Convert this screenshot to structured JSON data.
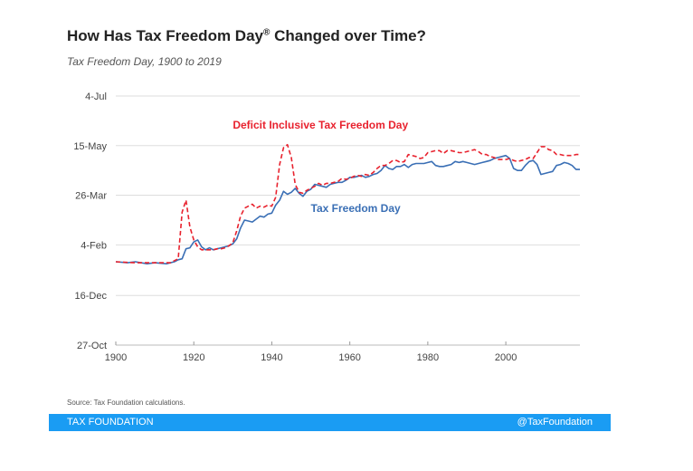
{
  "chart_data": {
    "type": "line",
    "title": "How Has Tax Freedom Day",
    "title_mark": "®",
    "title_suffix": " Changed over Time?",
    "subtitle": "Tax Freedom Day, 1900 to 2019",
    "xlabel": "",
    "ylabel": "",
    "x_ticks": [
      "1900",
      "1920",
      "1940",
      "1960",
      "1980",
      "2000"
    ],
    "y_ticks": [
      "27-Oct",
      "16-Dec",
      "4-Feb",
      "26-Mar",
      "15-May",
      "4-Jul"
    ],
    "y_tick_days": [
      -66,
      -16,
      35,
      85,
      135,
      185
    ],
    "xlim": [
      1900,
      2019
    ],
    "ylim": [
      -66,
      185
    ],
    "annotations": {
      "deficit": "Deficit Inclusive Tax Freedom Day",
      "tfd": "Tax Freedom Day"
    },
    "series": [
      {
        "name": "Tax Freedom Day",
        "color": "#3a6fb5",
        "dash": "solid",
        "points": [
          [
            1900,
            18
          ],
          [
            1903,
            17
          ],
          [
            1905,
            18
          ],
          [
            1908,
            16
          ],
          [
            1910,
            17
          ],
          [
            1913,
            16
          ],
          [
            1915,
            18
          ],
          [
            1916,
            20
          ],
          [
            1917,
            21
          ],
          [
            1918,
            31
          ],
          [
            1919,
            32
          ],
          [
            1920,
            38
          ],
          [
            1921,
            40
          ],
          [
            1922,
            33
          ],
          [
            1923,
            30
          ],
          [
            1924,
            32
          ],
          [
            1925,
            30
          ],
          [
            1926,
            31
          ],
          [
            1927,
            32
          ],
          [
            1928,
            33
          ],
          [
            1929,
            34
          ],
          [
            1930,
            36
          ],
          [
            1931,
            41
          ],
          [
            1932,
            52
          ],
          [
            1933,
            60
          ],
          [
            1934,
            59
          ],
          [
            1935,
            58
          ],
          [
            1936,
            61
          ],
          [
            1937,
            64
          ],
          [
            1938,
            63
          ],
          [
            1939,
            66
          ],
          [
            1940,
            67
          ],
          [
            1941,
            75
          ],
          [
            1942,
            80
          ],
          [
            1943,
            89
          ],
          [
            1944,
            86
          ],
          [
            1945,
            88
          ],
          [
            1946,
            92
          ],
          [
            1947,
            87
          ],
          [
            1948,
            84
          ],
          [
            1949,
            89
          ],
          [
            1950,
            91
          ],
          [
            1951,
            96
          ],
          [
            1952,
            95
          ],
          [
            1953,
            94
          ],
          [
            1954,
            93
          ],
          [
            1955,
            96
          ],
          [
            1956,
            97
          ],
          [
            1957,
            98
          ],
          [
            1958,
            98
          ],
          [
            1959,
            100
          ],
          [
            1960,
            103
          ],
          [
            1961,
            103
          ],
          [
            1962,
            104
          ],
          [
            1963,
            105
          ],
          [
            1964,
            103
          ],
          [
            1965,
            104
          ],
          [
            1966,
            106
          ],
          [
            1967,
            107
          ],
          [
            1968,
            110
          ],
          [
            1969,
            115
          ],
          [
            1970,
            112
          ],
          [
            1971,
            111
          ],
          [
            1972,
            114
          ],
          [
            1973,
            114
          ],
          [
            1974,
            116
          ],
          [
            1975,
            113
          ],
          [
            1976,
            116
          ],
          [
            1977,
            117
          ],
          [
            1978,
            117
          ],
          [
            1979,
            117
          ],
          [
            1980,
            118
          ],
          [
            1981,
            119
          ],
          [
            1982,
            115
          ],
          [
            1983,
            114
          ],
          [
            1984,
            114
          ],
          [
            1985,
            115
          ],
          [
            1986,
            116
          ],
          [
            1987,
            119
          ],
          [
            1988,
            118
          ],
          [
            1989,
            119
          ],
          [
            1990,
            118
          ],
          [
            1991,
            117
          ],
          [
            1992,
            116
          ],
          [
            1993,
            117
          ],
          [
            1994,
            118
          ],
          [
            1995,
            119
          ],
          [
            1996,
            120
          ],
          [
            1997,
            122
          ],
          [
            1998,
            123
          ],
          [
            1999,
            124
          ],
          [
            2000,
            125
          ],
          [
            2001,
            122
          ],
          [
            2002,
            112
          ],
          [
            2003,
            110
          ],
          [
            2004,
            110
          ],
          [
            2005,
            115
          ],
          [
            2006,
            119
          ],
          [
            2007,
            120
          ],
          [
            2008,
            116
          ],
          [
            2009,
            106
          ],
          [
            2010,
            107
          ],
          [
            2011,
            108
          ],
          [
            2012,
            109
          ],
          [
            2013,
            115
          ],
          [
            2014,
            116
          ],
          [
            2015,
            118
          ],
          [
            2016,
            117
          ],
          [
            2017,
            115
          ],
          [
            2018,
            111
          ],
          [
            2019,
            111
          ]
        ]
      },
      {
        "name": "Deficit Inclusive Tax Freedom Day",
        "color": "#e8222e",
        "dash": "dashed",
        "points": [
          [
            1900,
            18
          ],
          [
            1905,
            17
          ],
          [
            1910,
            17
          ],
          [
            1914,
            17
          ],
          [
            1916,
            21
          ],
          [
            1917,
            68
          ],
          [
            1918,
            80
          ],
          [
            1919,
            53
          ],
          [
            1920,
            40
          ],
          [
            1921,
            33
          ],
          [
            1922,
            30
          ],
          [
            1923,
            30
          ],
          [
            1924,
            30
          ],
          [
            1925,
            30
          ],
          [
            1926,
            31
          ],
          [
            1927,
            31
          ],
          [
            1928,
            32
          ],
          [
            1929,
            34
          ],
          [
            1930,
            37
          ],
          [
            1931,
            49
          ],
          [
            1932,
            64
          ],
          [
            1933,
            72
          ],
          [
            1934,
            74
          ],
          [
            1935,
            76
          ],
          [
            1936,
            72
          ],
          [
            1937,
            74
          ],
          [
            1938,
            73
          ],
          [
            1939,
            75
          ],
          [
            1940,
            74
          ],
          [
            1941,
            83
          ],
          [
            1942,
            116
          ],
          [
            1943,
            133
          ],
          [
            1944,
            136
          ],
          [
            1945,
            123
          ],
          [
            1946,
            96
          ],
          [
            1947,
            88
          ],
          [
            1948,
            87
          ],
          [
            1949,
            90
          ],
          [
            1950,
            92
          ],
          [
            1951,
            94
          ],
          [
            1952,
            97
          ],
          [
            1953,
            95
          ],
          [
            1954,
            97
          ],
          [
            1955,
            97
          ],
          [
            1956,
            98
          ],
          [
            1957,
            99
          ],
          [
            1958,
            102
          ],
          [
            1959,
            101
          ],
          [
            1960,
            102
          ],
          [
            1961,
            104
          ],
          [
            1962,
            105
          ],
          [
            1963,
            104
          ],
          [
            1964,
            106
          ],
          [
            1965,
            105
          ],
          [
            1966,
            108
          ],
          [
            1967,
            112
          ],
          [
            1968,
            115
          ],
          [
            1969,
            115
          ],
          [
            1970,
            117
          ],
          [
            1971,
            120
          ],
          [
            1972,
            120
          ],
          [
            1973,
            118
          ],
          [
            1974,
            119
          ],
          [
            1975,
            126
          ],
          [
            1976,
            125
          ],
          [
            1977,
            124
          ],
          [
            1978,
            122
          ],
          [
            1979,
            123
          ],
          [
            1980,
            128
          ],
          [
            1981,
            129
          ],
          [
            1982,
            130
          ],
          [
            1983,
            130
          ],
          [
            1984,
            127
          ],
          [
            1985,
            130
          ],
          [
            1986,
            130
          ],
          [
            1987,
            129
          ],
          [
            1988,
            128
          ],
          [
            1989,
            128
          ],
          [
            1990,
            129
          ],
          [
            1991,
            130
          ],
          [
            1992,
            131
          ],
          [
            1993,
            129
          ],
          [
            1994,
            126
          ],
          [
            1995,
            126
          ],
          [
            1996,
            124
          ],
          [
            1997,
            123
          ],
          [
            1998,
            121
          ],
          [
            1999,
            121
          ],
          [
            2000,
            121
          ],
          [
            2001,
            122
          ],
          [
            2002,
            120
          ],
          [
            2003,
            119
          ],
          [
            2004,
            120
          ],
          [
            2005,
            121
          ],
          [
            2006,
            123
          ],
          [
            2007,
            122
          ],
          [
            2008,
            128
          ],
          [
            2009,
            134
          ],
          [
            2010,
            134
          ],
          [
            2011,
            131
          ],
          [
            2012,
            130
          ],
          [
            2013,
            126
          ],
          [
            2014,
            126
          ],
          [
            2015,
            125
          ],
          [
            2016,
            125
          ],
          [
            2017,
            125
          ],
          [
            2018,
            126
          ],
          [
            2019,
            126
          ]
        ]
      }
    ]
  },
  "source": "Source: Tax Foundation calculations.",
  "footer": {
    "org": "TAX FOUNDATION",
    "handle": "@TaxFoundation"
  }
}
